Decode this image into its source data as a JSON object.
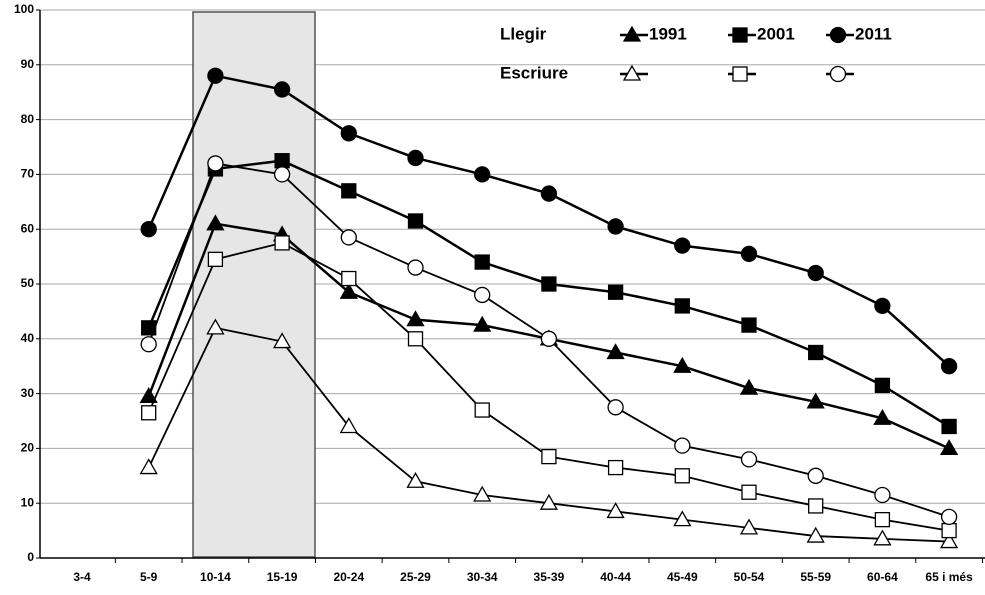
{
  "chart_data": {
    "type": "line",
    "categories": [
      "3-4",
      "5-9",
      "10-14",
      "15-19",
      "20-24",
      "25-29",
      "30-34",
      "35-39",
      "40-44",
      "45-49",
      "50-54",
      "55-59",
      "60-64",
      "65 i més"
    ],
    "columns": [
      "1991",
      "2001",
      "2011"
    ],
    "markers": [
      "triangle",
      "square",
      "circle"
    ],
    "series": [
      {
        "name": "Llegir",
        "fill": "#000000",
        "lines": [
          [
            null,
            29.5,
            61,
            59,
            48.5,
            43.5,
            42.5,
            40,
            37.5,
            35,
            31,
            28.5,
            25.5,
            20
          ],
          [
            null,
            42,
            71,
            72.5,
            67,
            61.5,
            54,
            50,
            48.5,
            46,
            42.5,
            37.5,
            31.5,
            24
          ],
          [
            null,
            60,
            88,
            85.5,
            77.5,
            73,
            70,
            66.5,
            60.5,
            57,
            55.5,
            52,
            46,
            35
          ]
        ]
      },
      {
        "name": "Escriure",
        "fill": "#ffffff",
        "lines": [
          [
            null,
            16.5,
            42,
            39.5,
            24,
            14,
            11.5,
            10,
            8.5,
            7,
            5.5,
            4,
            3.5,
            3
          ],
          [
            null,
            26.5,
            54.5,
            57.5,
            51,
            40,
            27,
            18.5,
            16.5,
            15,
            12,
            9.5,
            7,
            5
          ],
          [
            null,
            39,
            72,
            70,
            58.5,
            53,
            48,
            40,
            27.5,
            20.5,
            18,
            15,
            11.5,
            7.5
          ]
        ]
      }
    ],
    "ylim": [
      0,
      100
    ],
    "yticks": [
      0,
      10,
      20,
      30,
      40,
      50,
      60,
      70,
      80,
      90,
      100
    ],
    "grid": true
  }
}
